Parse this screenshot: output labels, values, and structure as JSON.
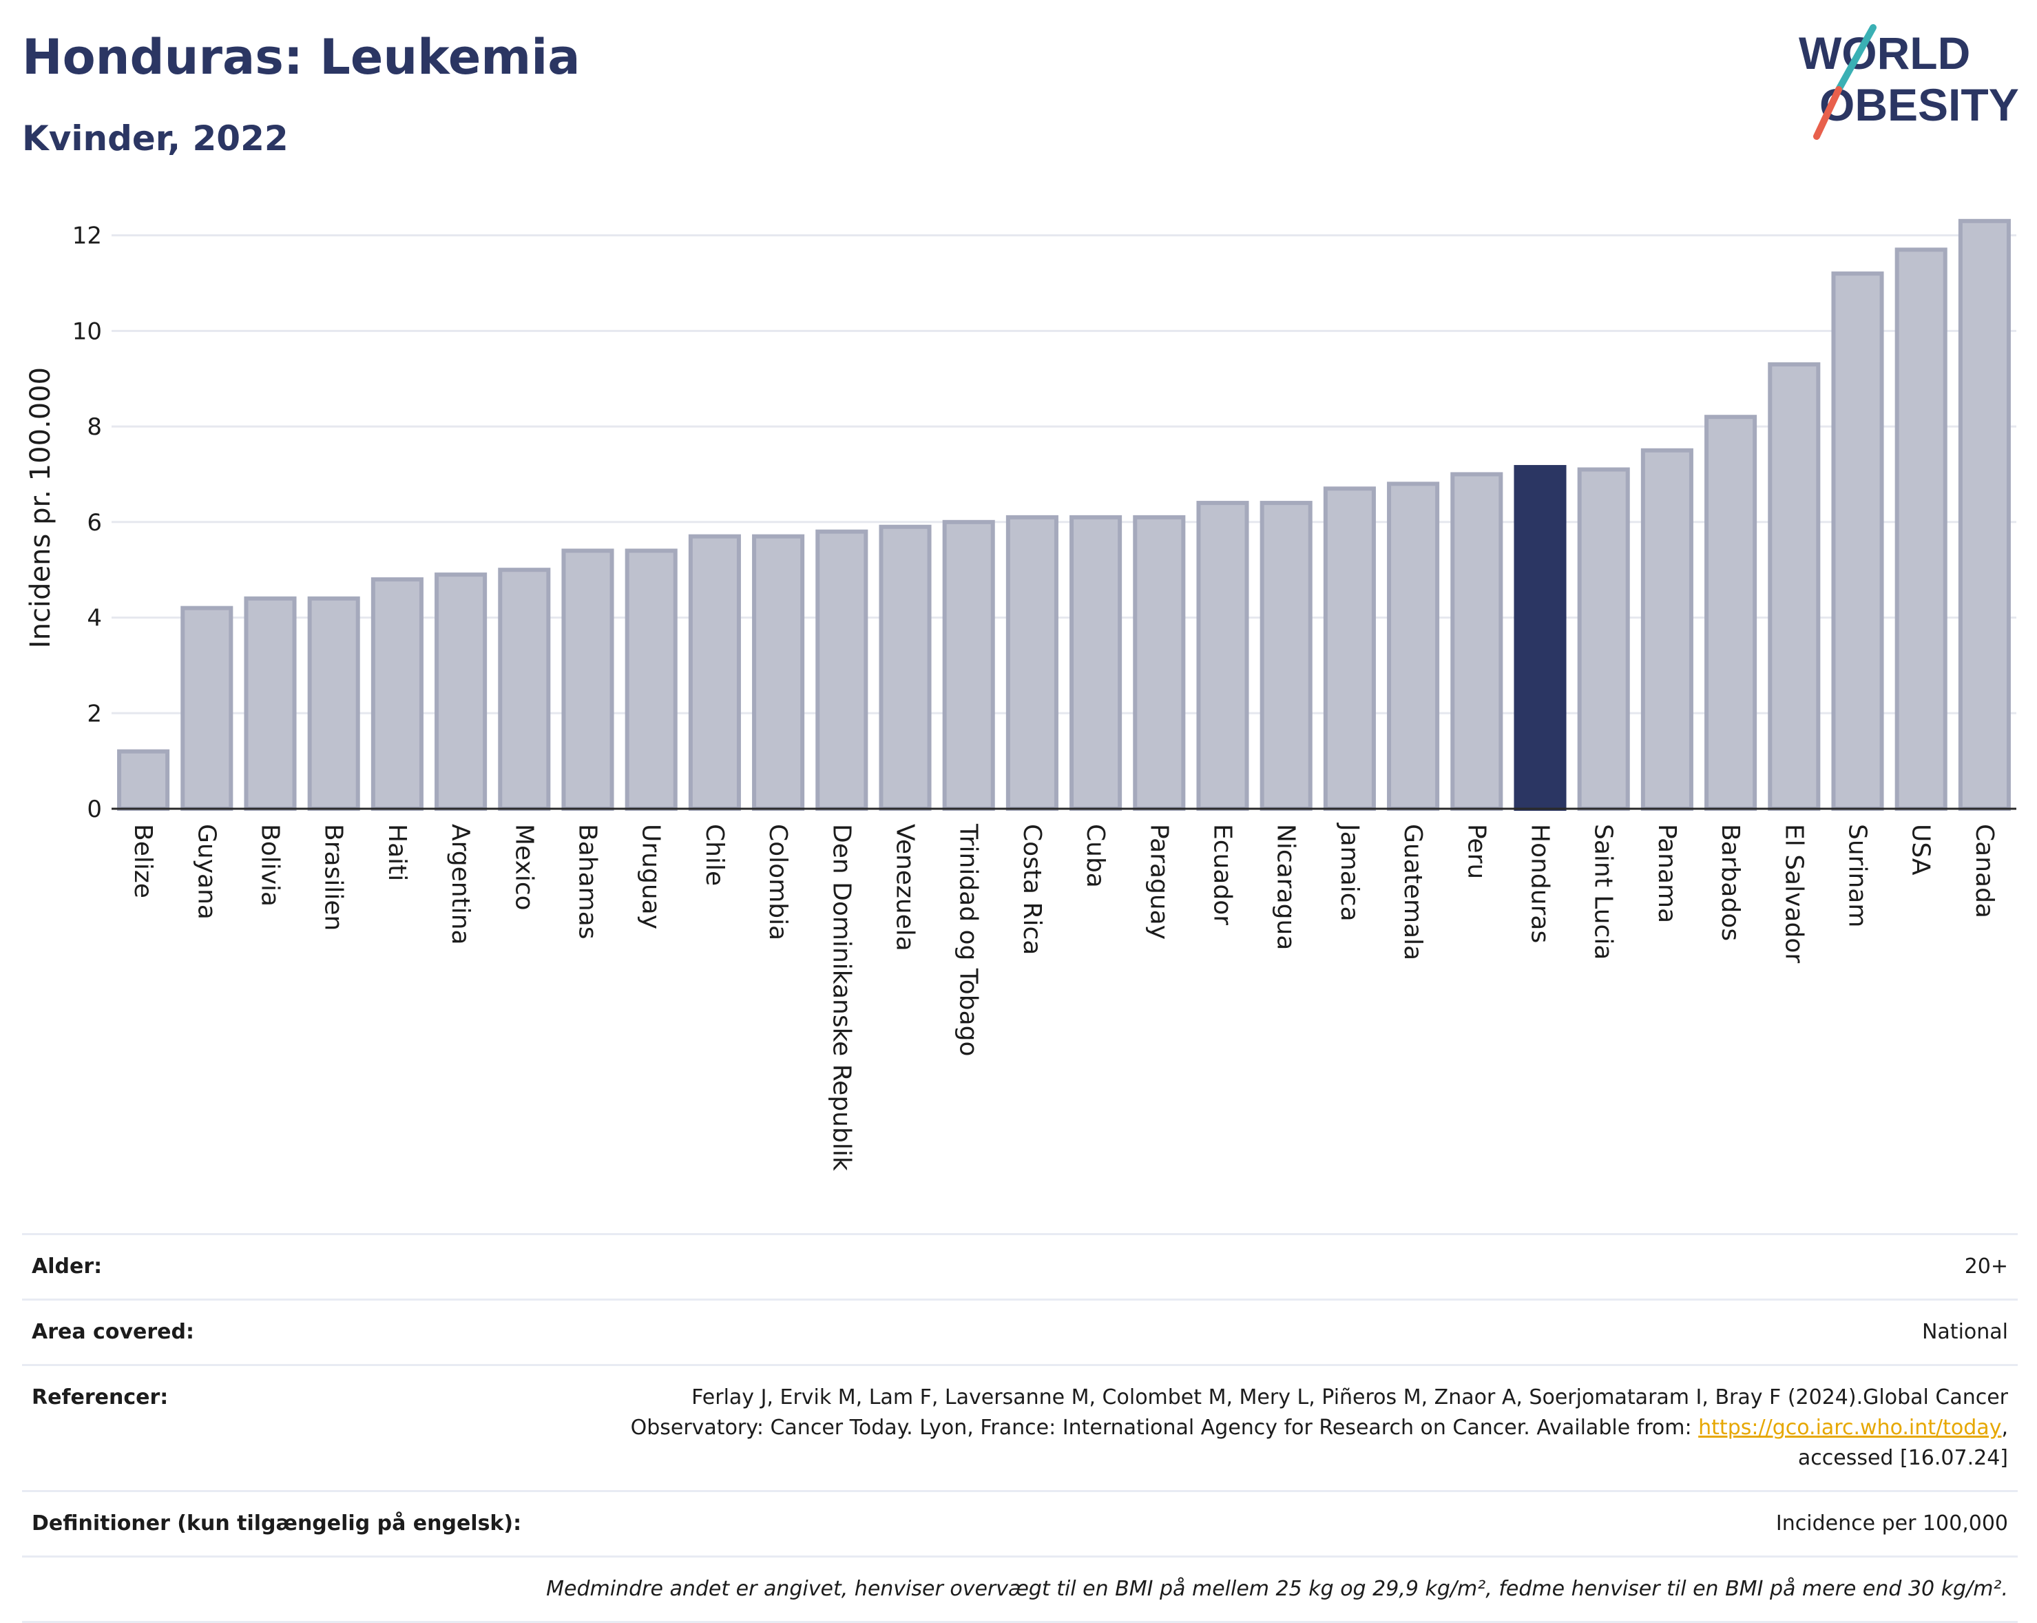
{
  "header": {
    "title": "Honduras: Leukemia",
    "subtitle": "Kvinder, 2022"
  },
  "logo": {
    "line1": "WORLD",
    "line2": "OBESITY",
    "colors": {
      "text": "#2b3663",
      "slash_red": "#e8604c",
      "slash_teal": "#3ab0b4"
    }
  },
  "chart_data": {
    "type": "bar",
    "title": "Honduras: Leukemia",
    "subtitle": "Kvinder, 2022",
    "ylabel": "Incidens pr. 100.000",
    "xlabel": "",
    "ylim": [
      0,
      12.6
    ],
    "yticks": [
      0,
      2,
      4,
      6,
      8,
      10,
      12
    ],
    "grid": true,
    "highlight": "Honduras",
    "colors": {
      "bar": "#bec1ce",
      "bar_edge": "#a5a9bc",
      "highlight": "#2b3663"
    },
    "categories": [
      "Belize",
      "Guyana",
      "Bolivia",
      "Brasilien",
      "Haiti",
      "Argentina",
      "Mexico",
      "Bahamas",
      "Uruguay",
      "Chile",
      "Colombia",
      "Den Dominikanske Republik",
      "Venezuela",
      "Trinidad og Tobago",
      "Costa Rica",
      "Cuba",
      "Paraguay",
      "Ecuador",
      "Nicaragua",
      "Jamaica",
      "Guatemala",
      "Peru",
      "Honduras",
      "Saint Lucia",
      "Panama",
      "Barbados",
      "El Salvador",
      "Surinam",
      "USA",
      "Canada"
    ],
    "values": [
      1.2,
      4.2,
      4.4,
      4.4,
      4.8,
      4.9,
      5.0,
      5.4,
      5.4,
      5.7,
      5.7,
      5.8,
      5.9,
      6.0,
      6.1,
      6.1,
      6.1,
      6.4,
      6.4,
      6.7,
      6.8,
      7.0,
      7.15,
      7.1,
      7.5,
      8.2,
      9.3,
      11.2,
      11.7,
      12.3
    ]
  },
  "meta": {
    "age_label": "Alder:",
    "age_value": "20+",
    "area_label": "Area covered:",
    "area_value": "National",
    "ref_label": "Referencer:",
    "ref_text_1": "Ferlay J, Ervik M, Lam F, Laversanne M, Colombet M, Mery L, Piñeros M, Znaor A, Soerjomataram I, Bray F (2024).Global Cancer",
    "ref_text_2": "Observatory: Cancer Today. Lyon, France: International Agency for Research on Cancer. Available from: ",
    "ref_link": "https://gco.iarc.who.int/today",
    "ref_text_3": ",",
    "ref_text_4": "accessed [16.07.24]",
    "def_label": "Definitioner (kun tilgængelig på engelsk):",
    "def_value": "Incidence per 100,000",
    "note": "Medmindre andet er angivet, henviser overvægt til en BMI på mellem 25 kg og 29,9 kg/m², fedme henviser til en BMI på mere end 30 kg/m²."
  }
}
